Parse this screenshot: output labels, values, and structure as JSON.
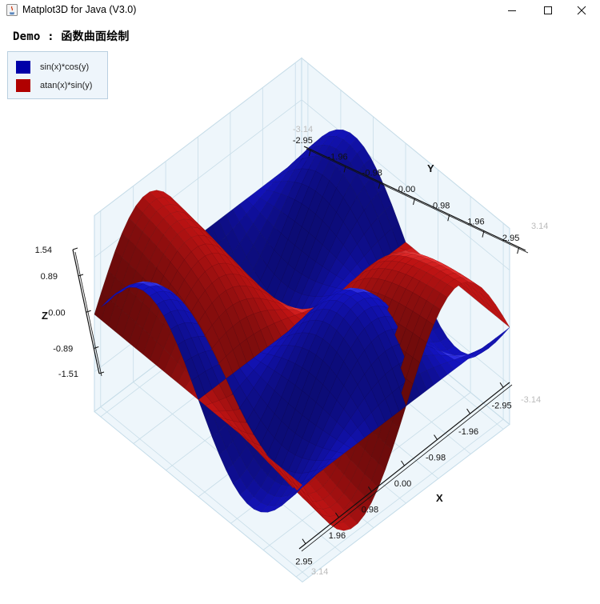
{
  "window": {
    "title": "Matplot3D for Java (V3.0)",
    "minimize_icon": "minimize-icon",
    "maximize_icon": "maximize-icon",
    "close_icon": "close-icon"
  },
  "heading": "Demo : 函数曲面绘制",
  "legend": [
    {
      "label": "sin(x)*cos(y)",
      "color": "#0000a8"
    },
    {
      "label": "atan(x)*sin(y)",
      "color": "#b00000"
    }
  ],
  "chart_data": {
    "type": "surface3d",
    "title": "Demo : 函数曲面绘制",
    "series": [
      {
        "name": "sin(x)*cos(y)",
        "function": "sin(x)*cos(y)",
        "color": "#0000a8"
      },
      {
        "name": "atan(x)*sin(y)",
        "function": "atan(x)*sin(y)",
        "color": "#b00000"
      }
    ],
    "x_range": [
      -3.14,
      3.14
    ],
    "y_range": [
      -3.14,
      3.14
    ],
    "z_range": [
      -1.51,
      1.54
    ],
    "x_label": "X",
    "y_label": "Y",
    "z_label": "Z",
    "x_ticks": [
      "-2.95",
      "-1.96",
      "-0.98",
      "0.00",
      "0.98",
      "1.96",
      "2.95"
    ],
    "y_ticks": [
      "-2.95",
      "-1.96",
      "-0.98",
      "0.00",
      "0.98",
      "1.96",
      "2.95"
    ],
    "z_ticks": [
      "1.54",
      "0.89",
      "0.00",
      "-0.89",
      "-1.51"
    ],
    "x_tick_values": [
      -2.95,
      -1.96,
      -0.98,
      0.0,
      0.98,
      1.96,
      2.95
    ],
    "y_tick_values": [
      -2.95,
      -1.96,
      -0.98,
      0.0,
      0.98,
      1.96,
      2.95
    ],
    "z_tick_values": [
      1.54,
      0.89,
      0.0,
      -0.89,
      -1.51
    ],
    "x_end_labels": [
      "-3.14",
      "3.14"
    ],
    "y_end_labels": [
      "-3.14",
      "3.14"
    ],
    "grid": true
  }
}
